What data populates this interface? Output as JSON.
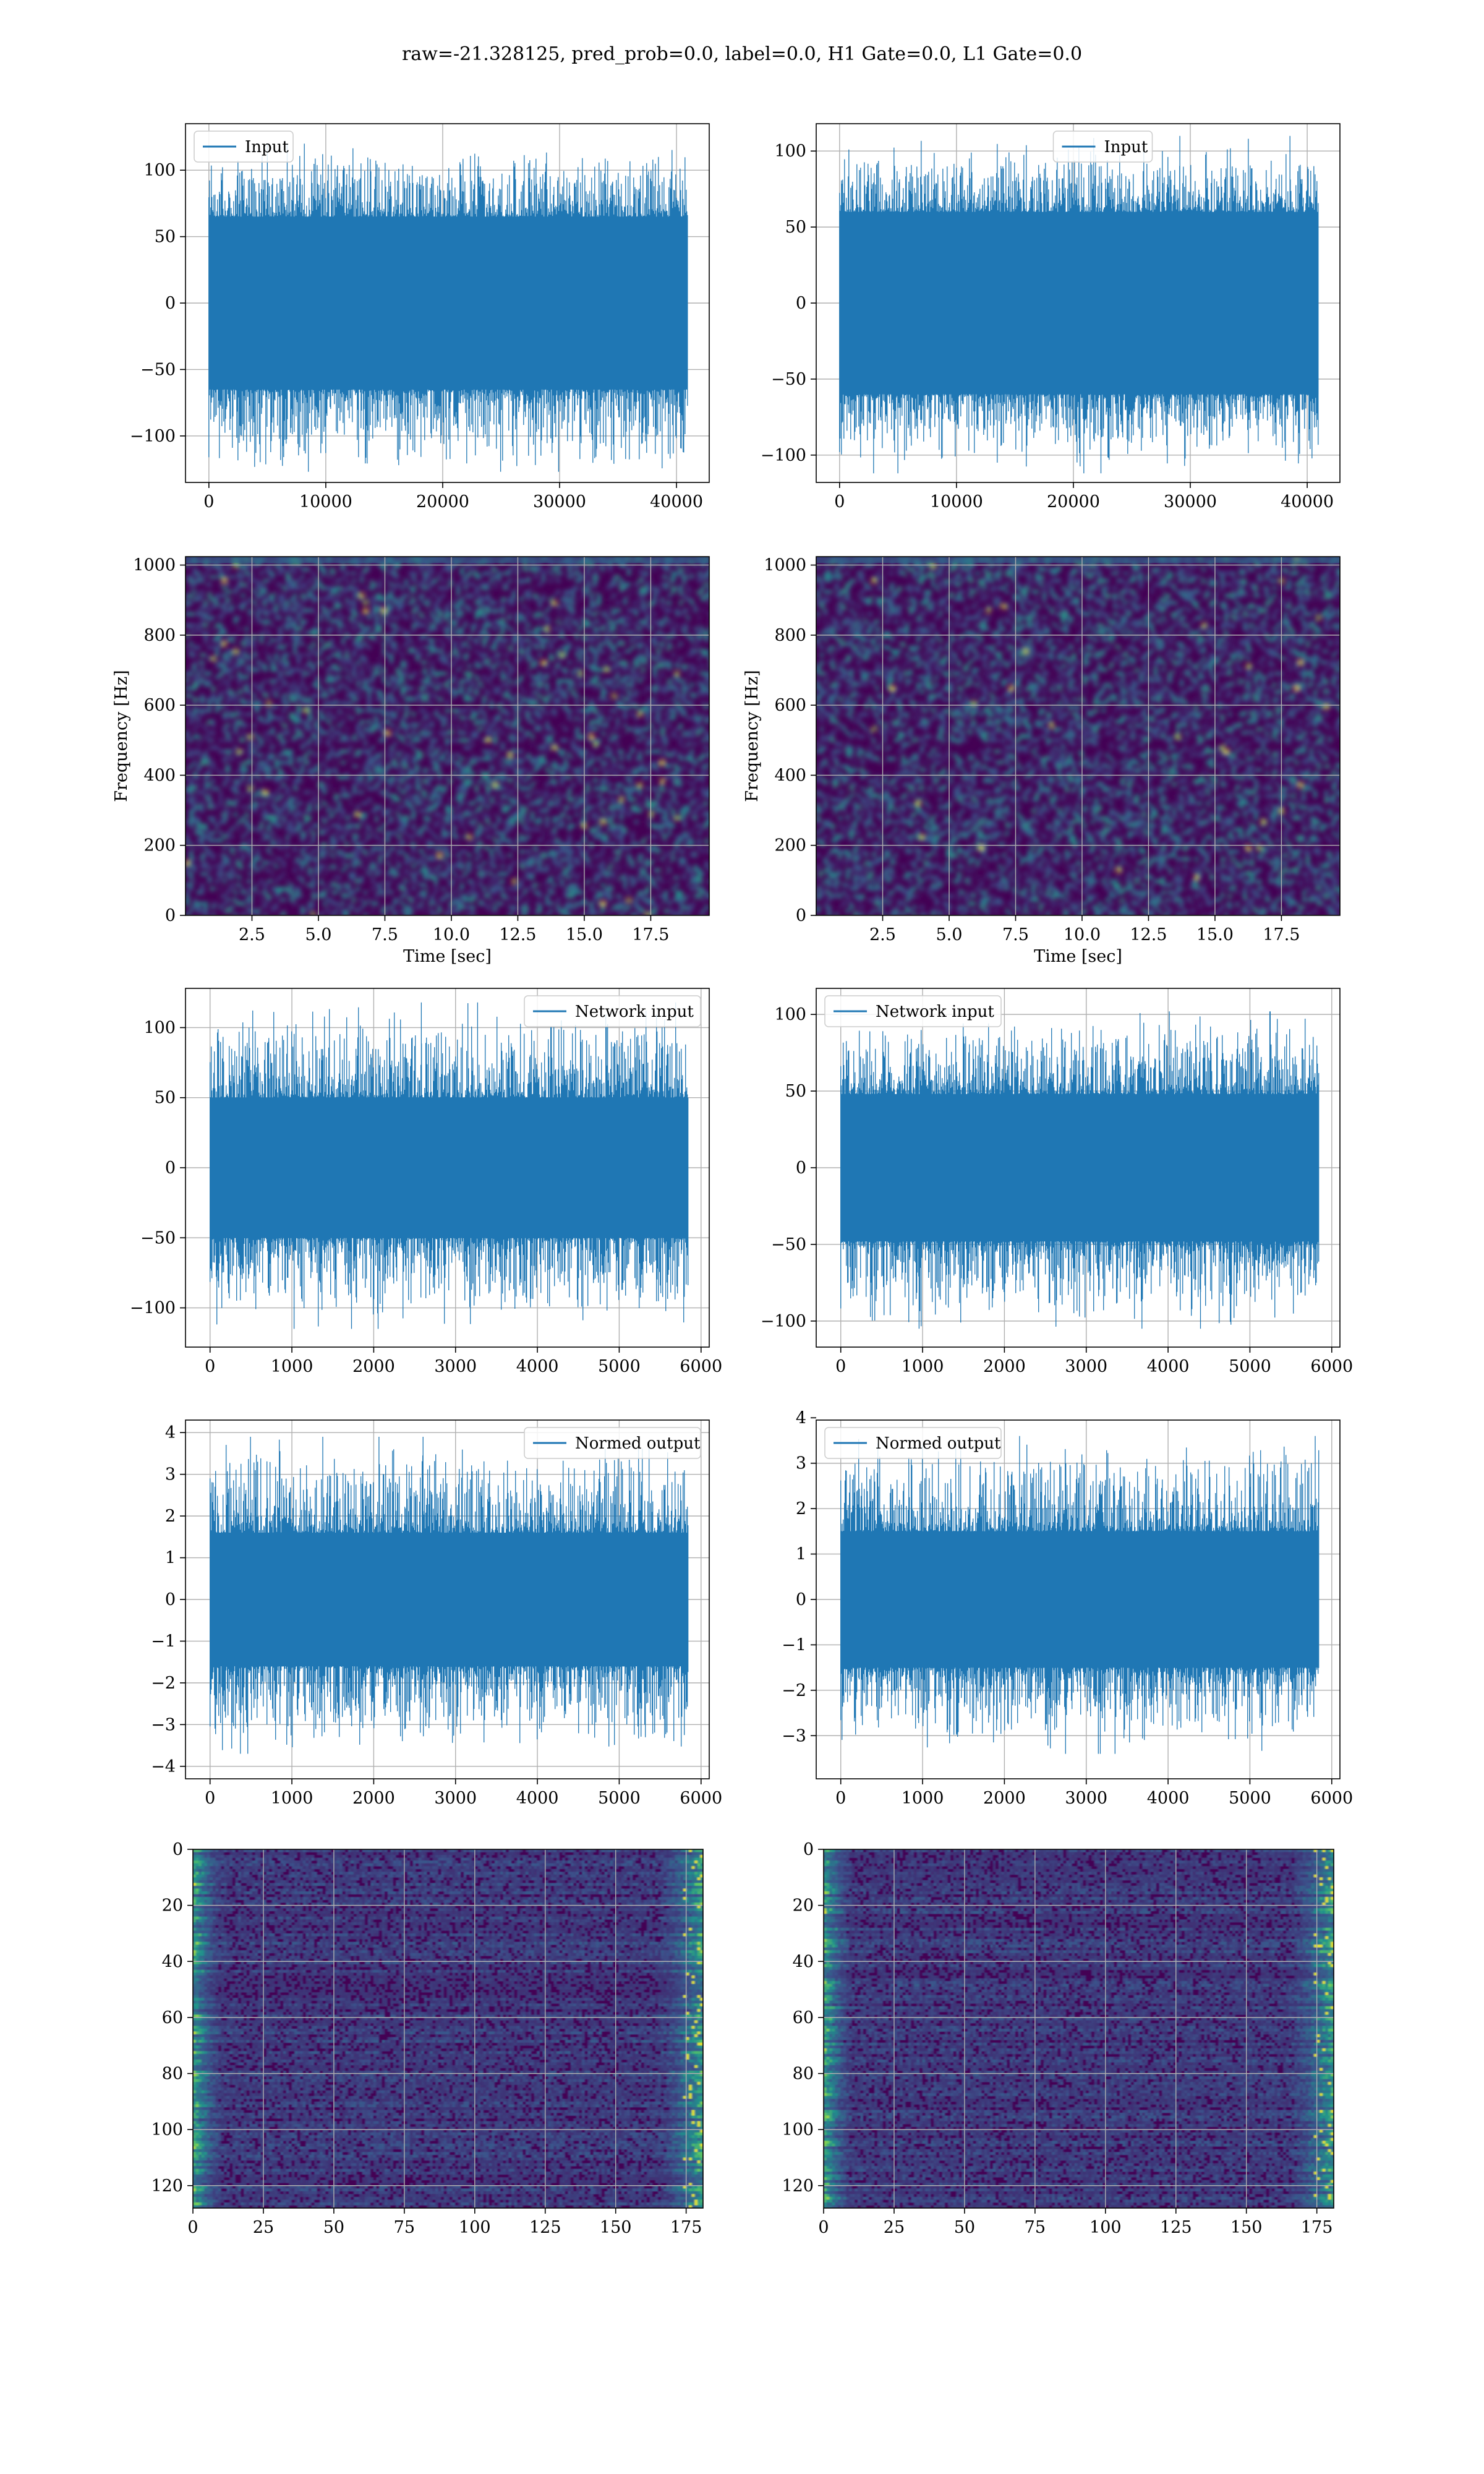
{
  "figure": {
    "suptitle": "raw=-21.328125, pred_prob=0.0, label=0.0, H1 Gate=0.0, L1 Gate=0.0"
  },
  "colors": {
    "series": "#1f77b4",
    "grid": "#b0b0b0",
    "viridis_dark": "#440154",
    "viridis_blue": "#31688e",
    "viridis_teal": "#21918c",
    "viridis_green": "#35b779",
    "viridis_yellow": "#fde725"
  },
  "chart_data": [
    {
      "id": "input-h1",
      "type": "line",
      "legend": "Input",
      "legend_loc": "upper-left",
      "xlim": [
        -2000,
        42800
      ],
      "ylim": [
        -135,
        135
      ],
      "xticks": [
        0,
        10000,
        20000,
        30000,
        40000
      ],
      "xtick_labels": [
        "0",
        "10000",
        "20000",
        "30000",
        "40000"
      ],
      "yticks": [
        -100,
        -50,
        0,
        50,
        100
      ],
      "ytick_labels": [
        "−100",
        "−50",
        "0",
        "50",
        "100"
      ],
      "x_extent": [
        0,
        40960
      ],
      "envelope": {
        "core_low": -65,
        "core_high": 65,
        "min": -127,
        "max": 120
      },
      "grid": true
    },
    {
      "id": "input-l1",
      "type": "line",
      "legend": "Input",
      "legend_loc": "upper-center",
      "xlim": [
        -2000,
        42800
      ],
      "ylim": [
        -118,
        118
      ],
      "xticks": [
        0,
        10000,
        20000,
        30000,
        40000
      ],
      "xtick_labels": [
        "0",
        "10000",
        "20000",
        "30000",
        "40000"
      ],
      "yticks": [
        -100,
        -50,
        0,
        50,
        100
      ],
      "ytick_labels": [
        "−100",
        "−50",
        "0",
        "50",
        "100"
      ],
      "x_extent": [
        0,
        40960
      ],
      "envelope": {
        "core_low": -60,
        "core_high": 60,
        "min": -112,
        "max": 110
      },
      "grid": true
    },
    {
      "id": "spectrogram-h1",
      "type": "heatmap",
      "xlabel": "Time [sec]",
      "ylabel": "Frequency [Hz]",
      "xlim": [
        0,
        19.7
      ],
      "ylim": [
        0,
        1024
      ],
      "xticks": [
        2.5,
        5.0,
        7.5,
        10.0,
        12.5,
        15.0,
        17.5
      ],
      "xtick_labels": [
        "2.5",
        "5.0",
        "7.5",
        "10.0",
        "12.5",
        "15.0",
        "17.5"
      ],
      "yticks": [
        0,
        200,
        400,
        600,
        800,
        1000
      ],
      "ytick_labels": [
        "0",
        "200",
        "400",
        "600",
        "800",
        "1000"
      ],
      "grid": true
    },
    {
      "id": "spectrogram-l1",
      "type": "heatmap",
      "xlabel": "Time [sec]",
      "ylabel": "Frequency [Hz]",
      "xlim": [
        0,
        19.7
      ],
      "ylim": [
        0,
        1024
      ],
      "xticks": [
        2.5,
        5.0,
        7.5,
        10.0,
        12.5,
        15.0,
        17.5
      ],
      "xtick_labels": [
        "2.5",
        "5.0",
        "7.5",
        "10.0",
        "12.5",
        "15.0",
        "17.5"
      ],
      "yticks": [
        0,
        200,
        400,
        600,
        800,
        1000
      ],
      "ytick_labels": [
        "0",
        "200",
        "400",
        "600",
        "800",
        "1000"
      ],
      "grid": true
    },
    {
      "id": "network-input-h1",
      "type": "line",
      "legend": "Network input",
      "legend_loc": "upper-right",
      "xlim": [
        -300,
        6100
      ],
      "ylim": [
        -128,
        128
      ],
      "xticks": [
        0,
        1000,
        2000,
        3000,
        4000,
        5000,
        6000
      ],
      "xtick_labels": [
        "0",
        "1000",
        "2000",
        "3000",
        "4000",
        "5000",
        "6000"
      ],
      "yticks": [
        -100,
        -50,
        0,
        50,
        100
      ],
      "ytick_labels": [
        "−100",
        "−50",
        "0",
        "50",
        "100"
      ],
      "x_extent": [
        0,
        5840
      ],
      "envelope": {
        "core_low": -50,
        "core_high": 50,
        "min": -115,
        "max": 118
      },
      "grid": true
    },
    {
      "id": "network-input-l1",
      "type": "line",
      "legend": "Network input",
      "legend_loc": "upper-left",
      "xlim": [
        -300,
        6100
      ],
      "ylim": [
        -117,
        117
      ],
      "xticks": [
        0,
        1000,
        2000,
        3000,
        4000,
        5000,
        6000
      ],
      "xtick_labels": [
        "0",
        "1000",
        "2000",
        "3000",
        "4000",
        "5000",
        "6000"
      ],
      "yticks": [
        -100,
        -50,
        0,
        50,
        100
      ],
      "ytick_labels": [
        "−100",
        "−50",
        "0",
        "50",
        "100"
      ],
      "x_extent": [
        0,
        5840
      ],
      "envelope": {
        "core_low": -48,
        "core_high": 48,
        "min": -105,
        "max": 102
      },
      "grid": true
    },
    {
      "id": "normed-output-h1",
      "type": "line",
      "legend": "Normed output",
      "legend_loc": "upper-right",
      "xlim": [
        -300,
        6100
      ],
      "ylim": [
        -4.3,
        4.3
      ],
      "xticks": [
        0,
        1000,
        2000,
        3000,
        4000,
        5000,
        6000
      ],
      "xtick_labels": [
        "0",
        "1000",
        "2000",
        "3000",
        "4000",
        "5000",
        "6000"
      ],
      "yticks": [
        -4,
        -3,
        -2,
        -1,
        0,
        1,
        2,
        3,
        4
      ],
      "ytick_labels": [
        "−4",
        "−3",
        "−2",
        "−1",
        "0",
        "1",
        "2",
        "3",
        "4"
      ],
      "x_extent": [
        0,
        5840
      ],
      "envelope": {
        "core_low": -1.6,
        "core_high": 1.6,
        "min": -3.7,
        "max": 3.9
      },
      "grid": true
    },
    {
      "id": "normed-output-l1",
      "type": "line",
      "legend": "Normed output",
      "legend_loc": "upper-left",
      "xlim": [
        -300,
        6100
      ],
      "ylim": [
        -3.95,
        3.95
      ],
      "xticks": [
        0,
        1000,
        2000,
        3000,
        4000,
        5000,
        6000
      ],
      "xtick_labels": [
        "0",
        "1000",
        "2000",
        "3000",
        "4000",
        "5000",
        "6000"
      ],
      "yticks": [
        -3,
        -2,
        -1,
        0,
        1,
        2,
        3,
        4
      ],
      "ytick_labels": [
        "−3",
        "−2",
        "−1",
        "0",
        "1",
        "2",
        "3",
        "4"
      ],
      "x_extent": [
        0,
        5840
      ],
      "envelope": {
        "core_low": -1.5,
        "core_high": 1.5,
        "min": -3.4,
        "max": 3.6
      },
      "grid": true
    },
    {
      "id": "features-h1",
      "type": "heatmap",
      "xlim": [
        0,
        181
      ],
      "ylim": [
        0,
        128
      ],
      "y_inverted": true,
      "xticks": [
        0,
        25,
        50,
        75,
        100,
        125,
        150,
        175
      ],
      "xtick_labels": [
        "0",
        "25",
        "50",
        "75",
        "100",
        "125",
        "150",
        "175"
      ],
      "yticks": [
        0,
        20,
        40,
        60,
        80,
        100,
        120
      ],
      "ytick_labels": [
        "0",
        "20",
        "40",
        "60",
        "80",
        "100",
        "120"
      ],
      "grid": true
    },
    {
      "id": "features-l1",
      "type": "heatmap",
      "xlim": [
        0,
        181
      ],
      "ylim": [
        0,
        128
      ],
      "y_inverted": true,
      "xticks": [
        0,
        25,
        50,
        75,
        100,
        125,
        150,
        175
      ],
      "xtick_labels": [
        "0",
        "25",
        "50",
        "75",
        "100",
        "125",
        "150",
        "175"
      ],
      "yticks": [
        0,
        20,
        40,
        60,
        80,
        100,
        120
      ],
      "ytick_labels": [
        "0",
        "20",
        "40",
        "60",
        "80",
        "100",
        "120"
      ],
      "grid": true
    }
  ]
}
